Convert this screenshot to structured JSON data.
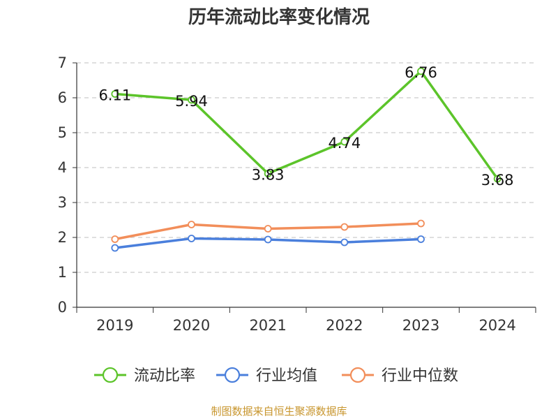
{
  "chart_data": {
    "type": "line",
    "title": "历年流动比率变化情况",
    "categories": [
      "2019",
      "2020",
      "2021",
      "2022",
      "2023",
      "2024"
    ],
    "ylim": [
      0,
      7
    ],
    "yticks": [
      "0",
      "1",
      "2",
      "3",
      "4",
      "5",
      "6",
      "7"
    ],
    "grid": true,
    "legend_position": "bottom",
    "series": [
      {
        "name": "流动比率",
        "color": "#5cc42a",
        "values": [
          6.11,
          5.94,
          3.83,
          4.74,
          6.76,
          3.68
        ],
        "labels": [
          "6.11",
          "5.94",
          "3.83",
          "4.74",
          "6.76",
          "3.68"
        ]
      },
      {
        "name": "行业均值",
        "color": "#4a7fdc",
        "values": [
          1.7,
          1.97,
          1.94,
          1.86,
          1.95,
          null
        ]
      },
      {
        "name": "行业中位数",
        "color": "#f28e5a",
        "values": [
          1.95,
          2.37,
          2.25,
          2.3,
          2.4,
          null
        ]
      }
    ]
  },
  "source_note": "制图数据来自恒生聚源数据库"
}
